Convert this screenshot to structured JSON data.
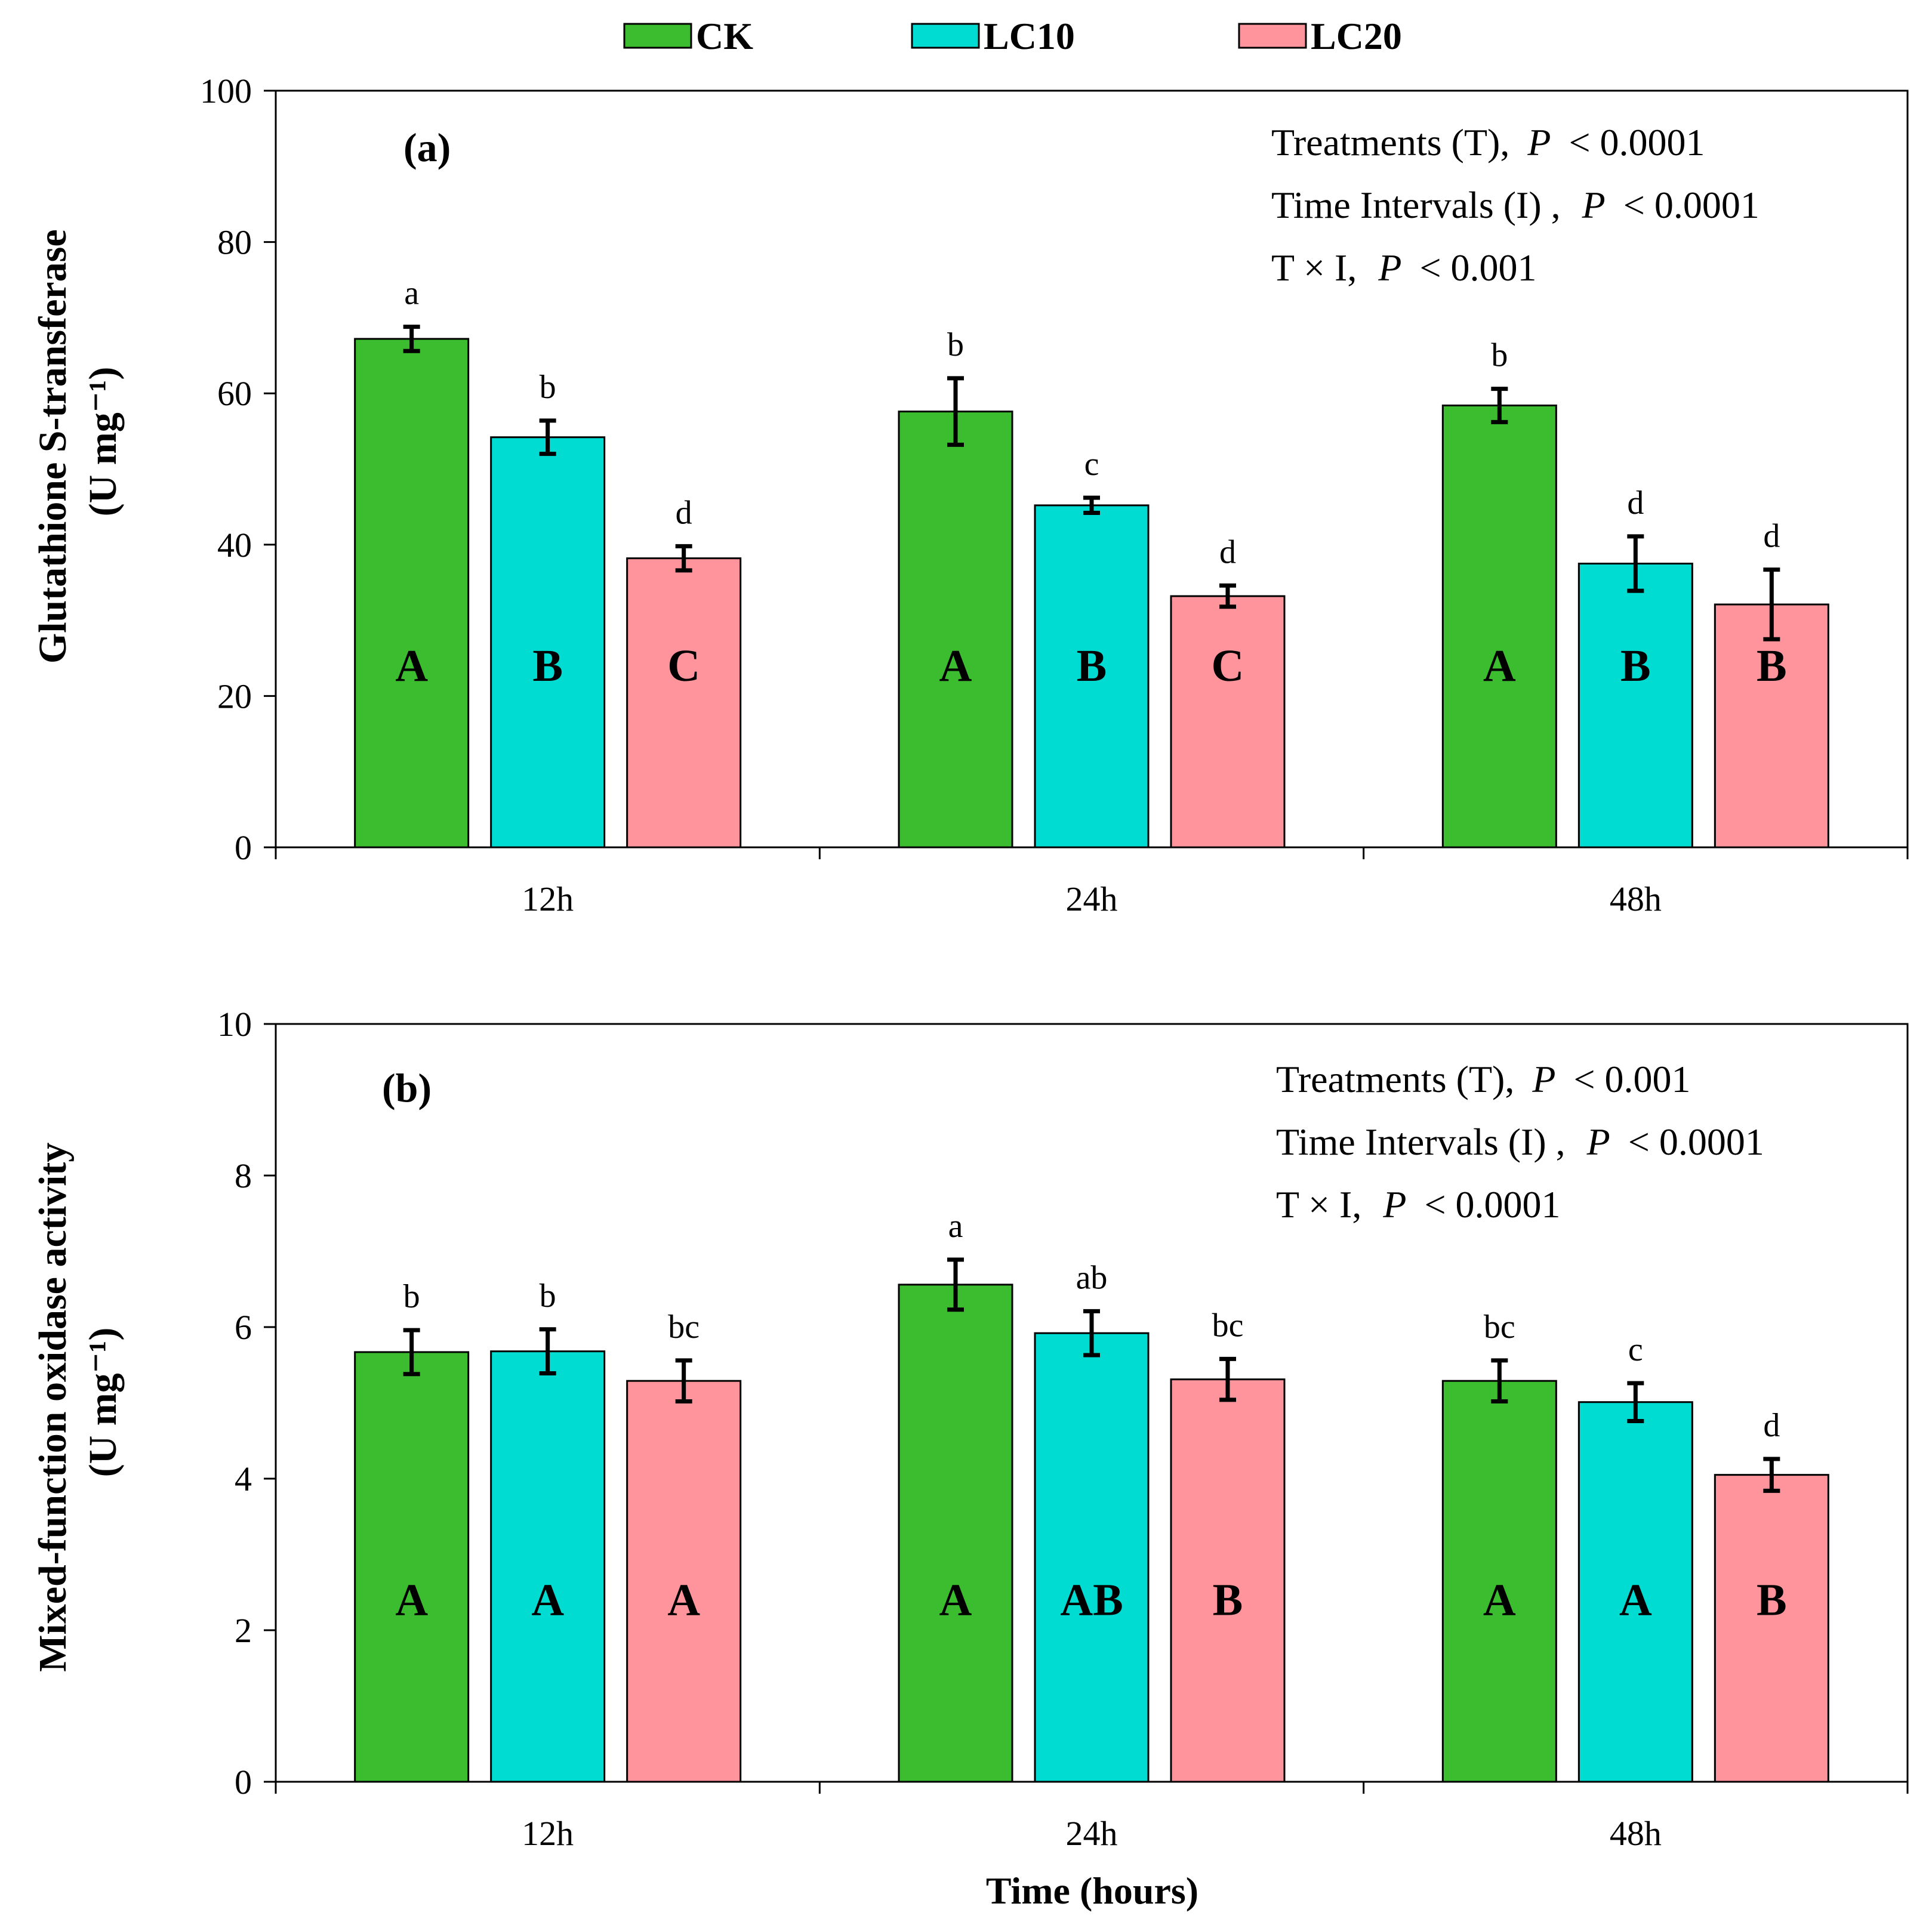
{
  "chart_data": {
    "type": "bar",
    "legend": {
      "placement": "top-center",
      "entries": [
        {
          "name": "CK",
          "color": "#3cbc2f"
        },
        {
          "name": "LC10",
          "color": "#00dcd2"
        },
        {
          "name": "LC20",
          "color": "#ff949c"
        }
      ]
    },
    "xlabel": "Time (hours)",
    "panels": [
      {
        "id": "a",
        "panel_label": "(a)",
        "ylabel_line1": "Glutathione S-transferase",
        "ylabel_line2": "(U mg⁻¹)",
        "ylim": [
          0,
          100
        ],
        "yticks": [
          "0",
          "20",
          "40",
          "60",
          "80",
          "100"
        ],
        "categories": [
          "12h",
          "24h",
          "48h"
        ],
        "series": [
          {
            "name": "CK",
            "values": [
              67.2,
              57.6,
              58.4
            ],
            "errors": [
              1.6,
              4.4,
              2.2
            ],
            "lower_letters": [
              "a",
              "b",
              "b"
            ],
            "upper_letters": [
              "A",
              "A",
              "A"
            ]
          },
          {
            "name": "LC10",
            "values": [
              54.2,
              45.2,
              37.5
            ],
            "errors": [
              2.2,
              1.0,
              3.6
            ],
            "lower_letters": [
              "b",
              "c",
              "d"
            ],
            "upper_letters": [
              "B",
              "B",
              "B"
            ]
          },
          {
            "name": "LC20",
            "values": [
              38.2,
              33.2,
              32.1
            ],
            "errors": [
              1.6,
              1.4,
              4.6
            ],
            "lower_letters": [
              "d",
              "d",
              "d"
            ],
            "upper_letters": [
              "C",
              "C",
              "B"
            ]
          }
        ],
        "stats": [
          {
            "label": "Treatments (T),",
            "p": "P",
            "rel": "< 0.0001"
          },
          {
            "label": "Time Intervals (I) ,",
            "p": "P",
            "rel": "< 0.0001"
          },
          {
            "label": "T × I,",
            "p": "P",
            "rel": "< 0.001"
          }
        ]
      },
      {
        "id": "b",
        "panel_label": "(b)",
        "ylabel_line1": "Mixed-function oxidase activity",
        "ylabel_line2": "(U mg⁻¹)",
        "ylim": [
          0,
          10
        ],
        "yticks": [
          "0",
          "2",
          "4",
          "6",
          "8",
          "10"
        ],
        "categories": [
          "12h",
          "24h",
          "48h"
        ],
        "series": [
          {
            "name": "CK",
            "values": [
              5.67,
              6.56,
              5.29
            ],
            "errors": [
              0.29,
              0.33,
              0.27
            ],
            "lower_letters": [
              "b",
              "a",
              "bc"
            ],
            "upper_letters": [
              "A",
              "A",
              "A"
            ]
          },
          {
            "name": "LC10",
            "values": [
              5.68,
              5.92,
              5.01
            ],
            "errors": [
              0.29,
              0.29,
              0.25
            ],
            "lower_letters": [
              "b",
              "ab",
              "c"
            ],
            "upper_letters": [
              "A",
              "AB",
              "A"
            ]
          },
          {
            "name": "LC20",
            "values": [
              5.29,
              5.31,
              4.05
            ],
            "errors": [
              0.27,
              0.27,
              0.21
            ],
            "lower_letters": [
              "bc",
              "bc",
              "d"
            ],
            "upper_letters": [
              "A",
              "B",
              "B"
            ]
          }
        ],
        "stats": [
          {
            "label": "Treatments (T),",
            "p": "P",
            "rel": "< 0.001"
          },
          {
            "label": "Time Intervals (I) ,",
            "p": "P",
            "rel": "< 0.0001"
          },
          {
            "label": "T × I,",
            "p": "P",
            "rel": "< 0.0001"
          }
        ]
      }
    ]
  }
}
